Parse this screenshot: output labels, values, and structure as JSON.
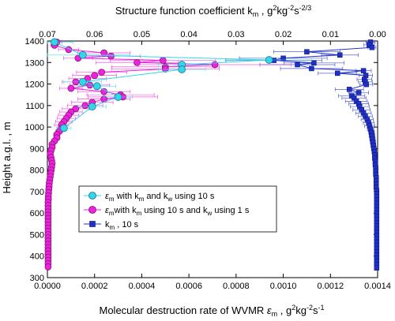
{
  "chart_data": {
    "type": "scatter",
    "title": "",
    "bottom_axis": {
      "label_main": "Molecular destruction rate of WVMR ",
      "label_symbol": "ε",
      "label_sub": "m",
      "label_units_prefix": " , g",
      "label_exp1": "2",
      "label_units_mid": "kg",
      "label_exp2": "-2",
      "label_units_s": "s",
      "label_exp3": "-1",
      "range": [
        0,
        0.0014
      ],
      "ticks": [
        0,
        0.0002,
        0.0004,
        0.0006,
        0.0008,
        0.001,
        0.0012,
        0.0014
      ],
      "tick_labels": [
        "0.0000",
        "0.0002",
        "0.0004",
        "0.0006",
        "0.0008",
        "0.0010",
        "0.0012",
        "0.0014"
      ]
    },
    "top_axis": {
      "label_main": "Structure function coefficient k",
      "label_sub": "m",
      "label_units_prefix": " , g",
      "label_exp1": "2",
      "label_units_mid": "kg",
      "label_exp2": "-2",
      "label_units_s": "s",
      "label_exp3": "-2/3",
      "range": [
        0.07,
        0.0
      ],
      "ticks": [
        0.07,
        0.06,
        0.05,
        0.04,
        0.03,
        0.02,
        0.01,
        0.0
      ],
      "tick_labels": [
        "0.07",
        "0.06",
        "0.05",
        "0.04",
        "0.03",
        "0.02",
        "0.01",
        "0.00"
      ]
    },
    "y_axis": {
      "label": "Height a.g.l. , m",
      "range": [
        300,
        1400
      ],
      "ticks": [
        300,
        400,
        500,
        600,
        700,
        800,
        900,
        1000,
        1100,
        1200,
        1300,
        1400
      ],
      "tick_labels": [
        "300",
        "400",
        "500",
        "600",
        "700",
        "800",
        "900",
        "1000",
        "1100",
        "1200",
        "1300",
        "1400"
      ]
    },
    "grid": false,
    "legend_position": "middle-left",
    "series": [
      {
        "key": "cyan",
        "axis": "bottom",
        "color": "#33d6e8",
        "marker": "circle",
        "legend": {
          "sym": "ε",
          "sub": "m",
          "text1": " with k",
          "sub2": "m",
          "text2": " and k",
          "sub3": "w",
          "text3": " using 10 s"
        },
        "points": [
          [
            3e-05,
            1395
          ],
          [
            0.00015,
            1335
          ],
          [
            0.00094,
            1312
          ],
          [
            0.00057,
            1290
          ],
          [
            0.00057,
            1268
          ],
          [
            0.00015,
            1210
          ],
          [
            0.00021,
            1190
          ],
          [
            0.0003,
            1140
          ],
          [
            0.00019,
            1095
          ],
          [
            7e-05,
            995
          ]
        ],
        "xerr": [
          8e-05,
          0.0002,
          0.00018,
          0.0001,
          0.0001,
          8e-05,
          8e-05,
          6e-05,
          6e-05,
          3e-05
        ]
      },
      {
        "key": "magenta",
        "axis": "bottom",
        "color": "#ee22dd",
        "marker": "circle",
        "legend": {
          "sym": "ε",
          "sub": "m",
          "text1": "with k",
          "sub2": "m",
          "text2": " using 10 s and k",
          "sub3": "w",
          "text3": " using 1 s"
        },
        "points": [
          [
            4e-05,
            1395
          ],
          [
            3e-05,
            1380
          ],
          [
            9e-05,
            1360
          ],
          [
            0.00024,
            1345
          ],
          [
            0.00027,
            1330
          ],
          [
            0.00013,
            1320
          ],
          [
            0.00049,
            1310
          ],
          [
            0.00038,
            1300
          ],
          [
            0.00071,
            1290
          ],
          [
            0.0005,
            1280
          ],
          [
            0.0005,
            1270
          ],
          [
            0.00023,
            1255
          ],
          [
            0.0002,
            1240
          ],
          [
            0.00017,
            1225
          ],
          [
            0.00012,
            1210
          ],
          [
            0.00018,
            1195
          ],
          [
            0.0001,
            1180
          ],
          [
            0.00024,
            1165
          ],
          [
            0.00031,
            1150
          ],
          [
            0.00032,
            1140
          ],
          [
            0.00024,
            1130
          ],
          [
            0.00019,
            1115
          ],
          [
            0.00016,
            1100
          ],
          [
            0.00012,
            1085
          ],
          [
            0.0001,
            1070
          ],
          [
            9e-05,
            1055
          ],
          [
            8e-05,
            1040
          ],
          [
            7e-05,
            1025
          ],
          [
            6e-05,
            1010
          ],
          [
            6e-05,
            995
          ],
          [
            5e-05,
            980
          ],
          [
            4e-05,
            965
          ],
          [
            4e-05,
            950
          ],
          [
            3e-05,
            935
          ],
          [
            2e-05,
            920
          ],
          [
            2e-05,
            905
          ],
          [
            1.5e-05,
            890
          ],
          [
            1.2e-05,
            875
          ],
          [
            1.5e-05,
            860
          ],
          [
            1.8e-05,
            845
          ],
          [
            2e-05,
            830
          ],
          [
            1.8e-05,
            815
          ],
          [
            1.6e-05,
            800
          ],
          [
            1.4e-05,
            785
          ],
          [
            1.2e-05,
            770
          ],
          [
            1e-05,
            755
          ],
          [
            8e-06,
            740
          ],
          [
            7e-06,
            725
          ],
          [
            6e-06,
            710
          ],
          [
            5e-06,
            695
          ],
          [
            4e-06,
            680
          ],
          [
            4e-06,
            665
          ],
          [
            3e-06,
            650
          ],
          [
            3e-06,
            635
          ],
          [
            3e-06,
            620
          ],
          [
            3e-06,
            605
          ],
          [
            3e-06,
            590
          ],
          [
            3e-06,
            575
          ],
          [
            3e-06,
            560
          ],
          [
            3e-06,
            545
          ],
          [
            3e-06,
            530
          ],
          [
            3e-06,
            515
          ],
          [
            3e-06,
            500
          ],
          [
            3e-06,
            485
          ],
          [
            3e-06,
            470
          ],
          [
            3e-06,
            455
          ],
          [
            3e-06,
            440
          ],
          [
            3e-06,
            425
          ],
          [
            3e-06,
            410
          ],
          [
            3e-06,
            395
          ],
          [
            3e-06,
            380
          ],
          [
            3e-06,
            365
          ],
          [
            3e-06,
            350
          ]
        ]
      },
      {
        "key": "blue",
        "axis": "top",
        "color": "#1f2fc8",
        "marker": "square",
        "legend": {
          "text1": "k",
          "sub2": "m",
          "text2": " , 10 s"
        },
        "points": [
          [
            0.0015,
            1395
          ],
          [
            0.0018,
            1382
          ],
          [
            0.0012,
            1370
          ],
          [
            0.015,
            1350
          ],
          [
            0.008,
            1335
          ],
          [
            0.02,
            1320
          ],
          [
            0.022,
            1310
          ],
          [
            0.0135,
            1298
          ],
          [
            0.017,
            1290
          ],
          [
            0.014,
            1272
          ],
          [
            0.003,
            1262
          ],
          [
            0.0085,
            1250
          ],
          [
            0.0025,
            1240
          ],
          [
            0.0028,
            1222
          ],
          [
            0.0026,
            1210
          ],
          [
            0.0024,
            1198
          ],
          [
            0.006,
            1175
          ],
          [
            0.004,
            1160
          ],
          [
            0.0055,
            1145
          ],
          [
            0.005,
            1135
          ],
          [
            0.0045,
            1120
          ],
          [
            0.004,
            1108
          ],
          [
            0.0038,
            1095
          ],
          [
            0.0034,
            1080
          ],
          [
            0.003,
            1065
          ],
          [
            0.0026,
            1050
          ],
          [
            0.0022,
            1035
          ],
          [
            0.0019,
            1020
          ],
          [
            0.0017,
            1005
          ],
          [
            0.0015,
            990
          ],
          [
            0.0013,
            975
          ],
          [
            0.0012,
            960
          ],
          [
            0.0011,
            945
          ],
          [
            0.001,
            930
          ],
          [
            0.0009,
            915
          ],
          [
            0.0008,
            900
          ],
          [
            0.0007,
            885
          ],
          [
            0.0006,
            870
          ],
          [
            0.0006,
            855
          ],
          [
            0.0005,
            840
          ],
          [
            0.0005,
            825
          ],
          [
            0.0004,
            810
          ],
          [
            0.0004,
            795
          ],
          [
            0.0004,
            780
          ],
          [
            0.0003,
            765
          ],
          [
            0.0003,
            750
          ],
          [
            0.0003,
            735
          ],
          [
            0.0003,
            720
          ],
          [
            0.0002,
            705
          ],
          [
            0.0002,
            690
          ],
          [
            0.0002,
            675
          ],
          [
            0.0002,
            660
          ],
          [
            0.0002,
            645
          ],
          [
            0.0002,
            630
          ],
          [
            0.0002,
            615
          ],
          [
            0.0002,
            600
          ],
          [
            0.0002,
            585
          ],
          [
            0.0002,
            570
          ],
          [
            0.0002,
            555
          ],
          [
            0.0002,
            540
          ],
          [
            0.0002,
            525
          ],
          [
            0.0002,
            510
          ],
          [
            0.0002,
            495
          ],
          [
            0.0002,
            480
          ],
          [
            0.0002,
            465
          ],
          [
            0.0002,
            450
          ],
          [
            0.0002,
            435
          ],
          [
            0.0002,
            420
          ],
          [
            0.0002,
            405
          ],
          [
            0.0002,
            390
          ],
          [
            0.0002,
            375
          ],
          [
            0.0002,
            360
          ],
          [
            0.0002,
            345
          ]
        ]
      }
    ]
  }
}
